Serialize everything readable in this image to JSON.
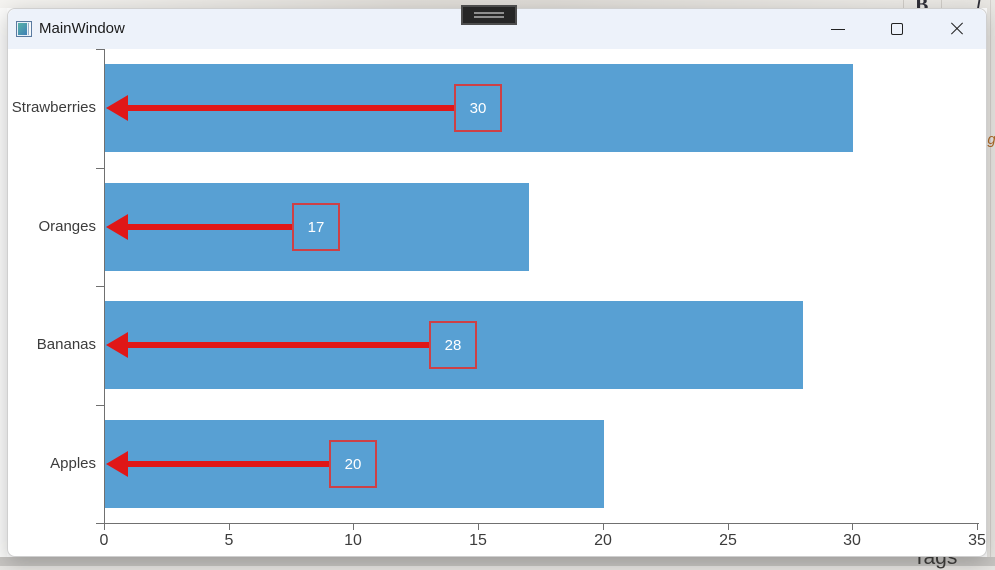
{
  "window": {
    "title": "MainWindow"
  },
  "background": {
    "toolbar_letters": [
      "B",
      "I"
    ],
    "bottom_label": "Tags",
    "right_fragment": "ng"
  },
  "chart_data": {
    "type": "bar",
    "orientation": "horizontal",
    "title": "",
    "categories": [
      "Strawberries",
      "Oranges",
      "Bananas",
      "Apples"
    ],
    "values": [
      30,
      17,
      28,
      20
    ],
    "data_labels": [
      "30",
      "17",
      "28",
      "20"
    ],
    "x_ticks": [
      0,
      5,
      10,
      15,
      20,
      25,
      30,
      35
    ],
    "xlim": [
      0,
      35
    ],
    "grid": "off",
    "legend": "none",
    "bar_color": "#58A0D3",
    "annotation_arrow_color": "#E01717",
    "label_box_border_color": "#CE4046",
    "label_text_color": "#FFFFFF",
    "axis_color": "#707070",
    "tick_label_color": "#3C3C3C"
  }
}
